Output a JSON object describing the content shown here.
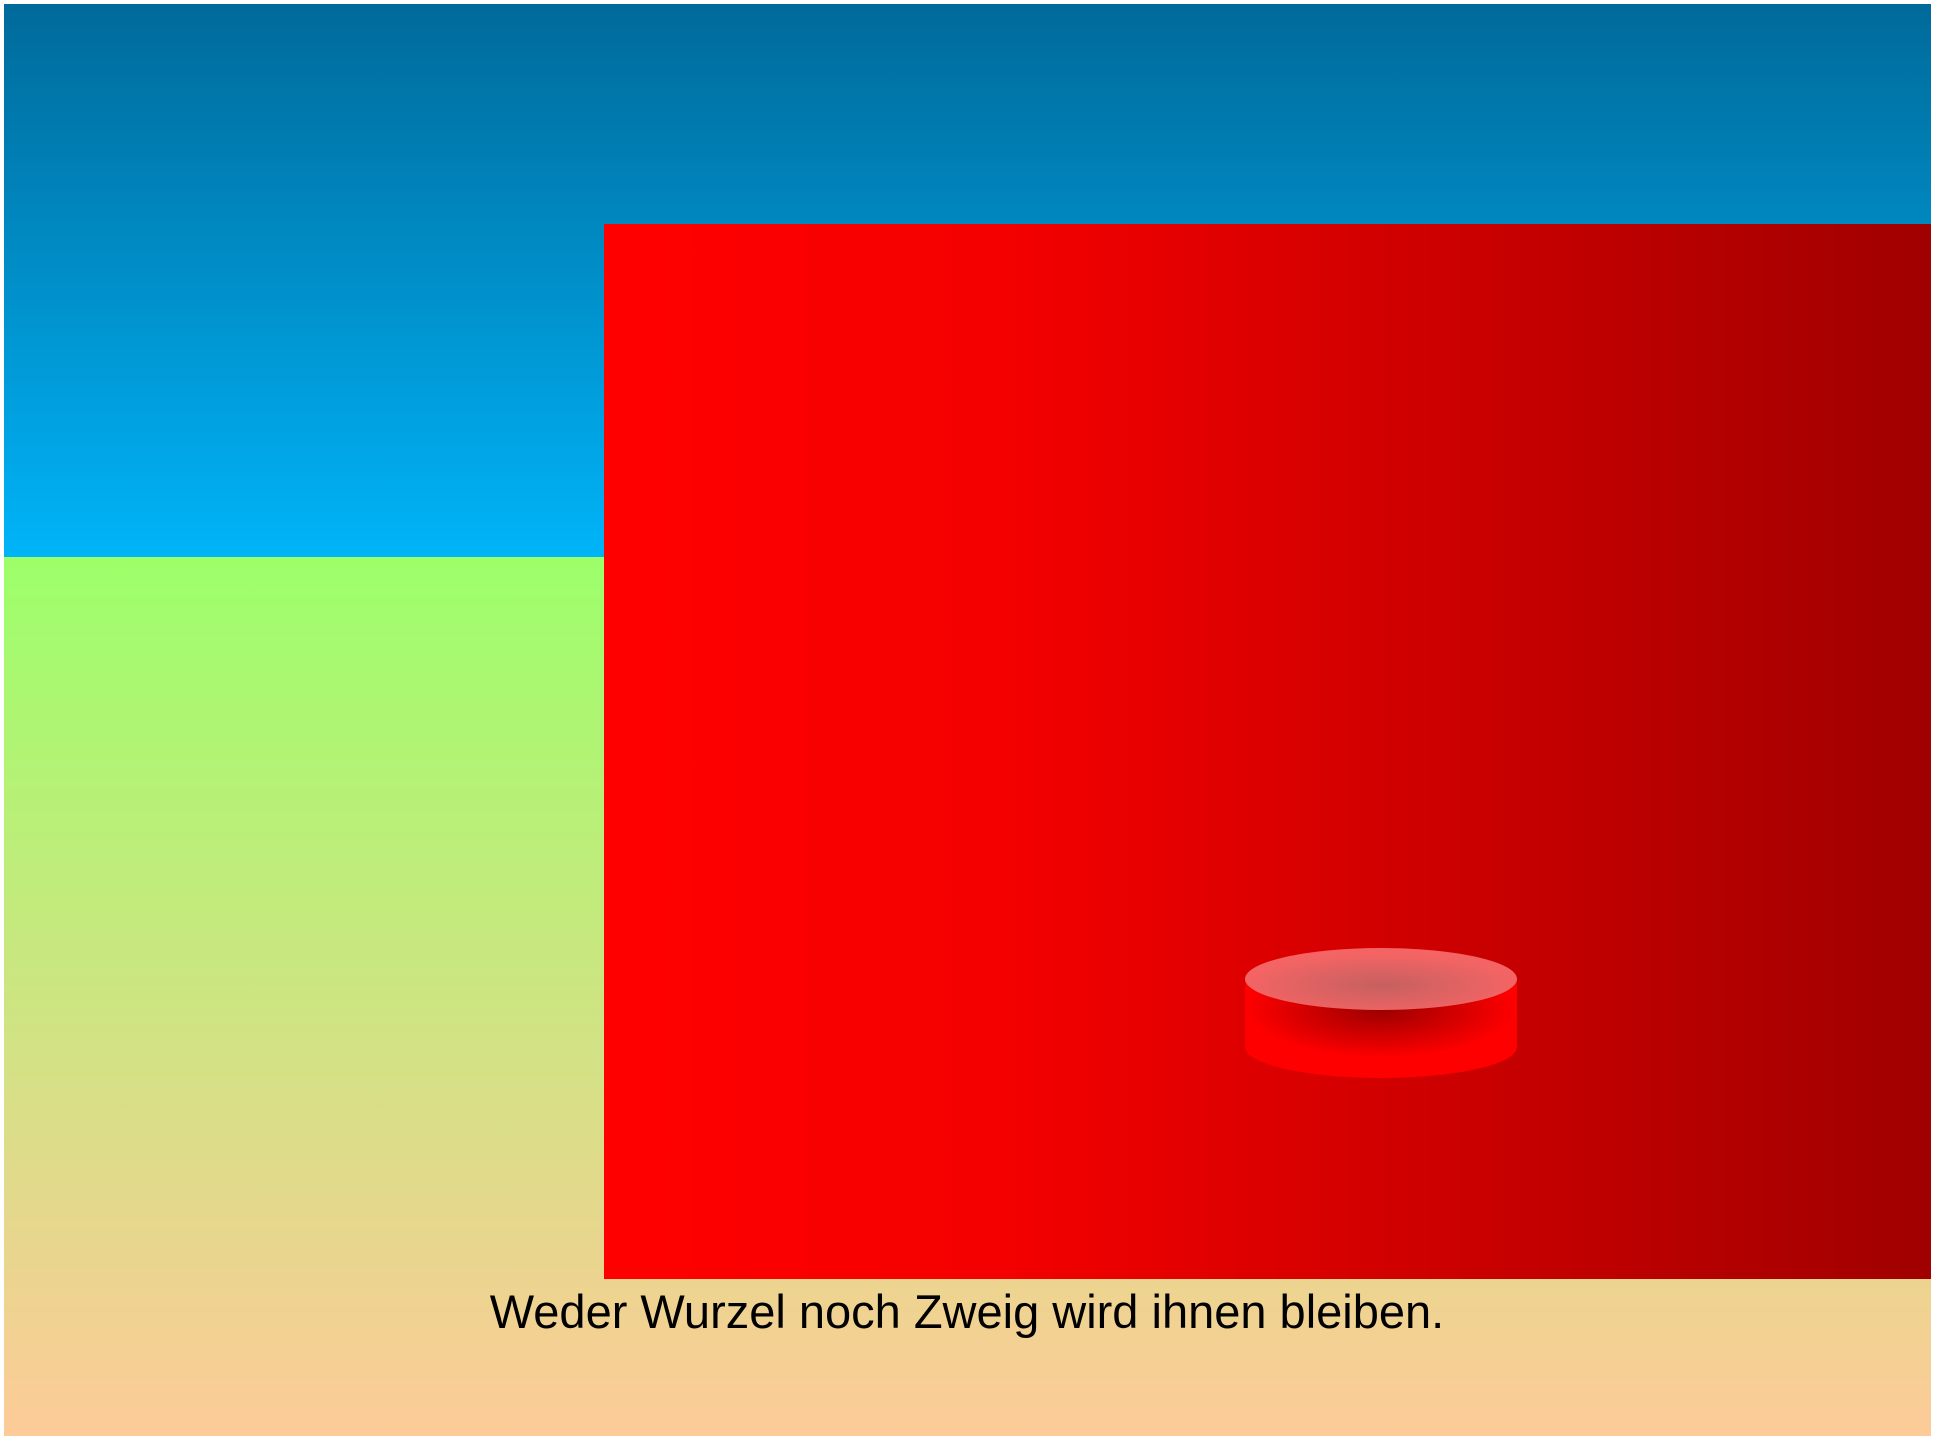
{
  "caption": "Weder Wurzel noch Zweig wird ihnen bleiben."
}
